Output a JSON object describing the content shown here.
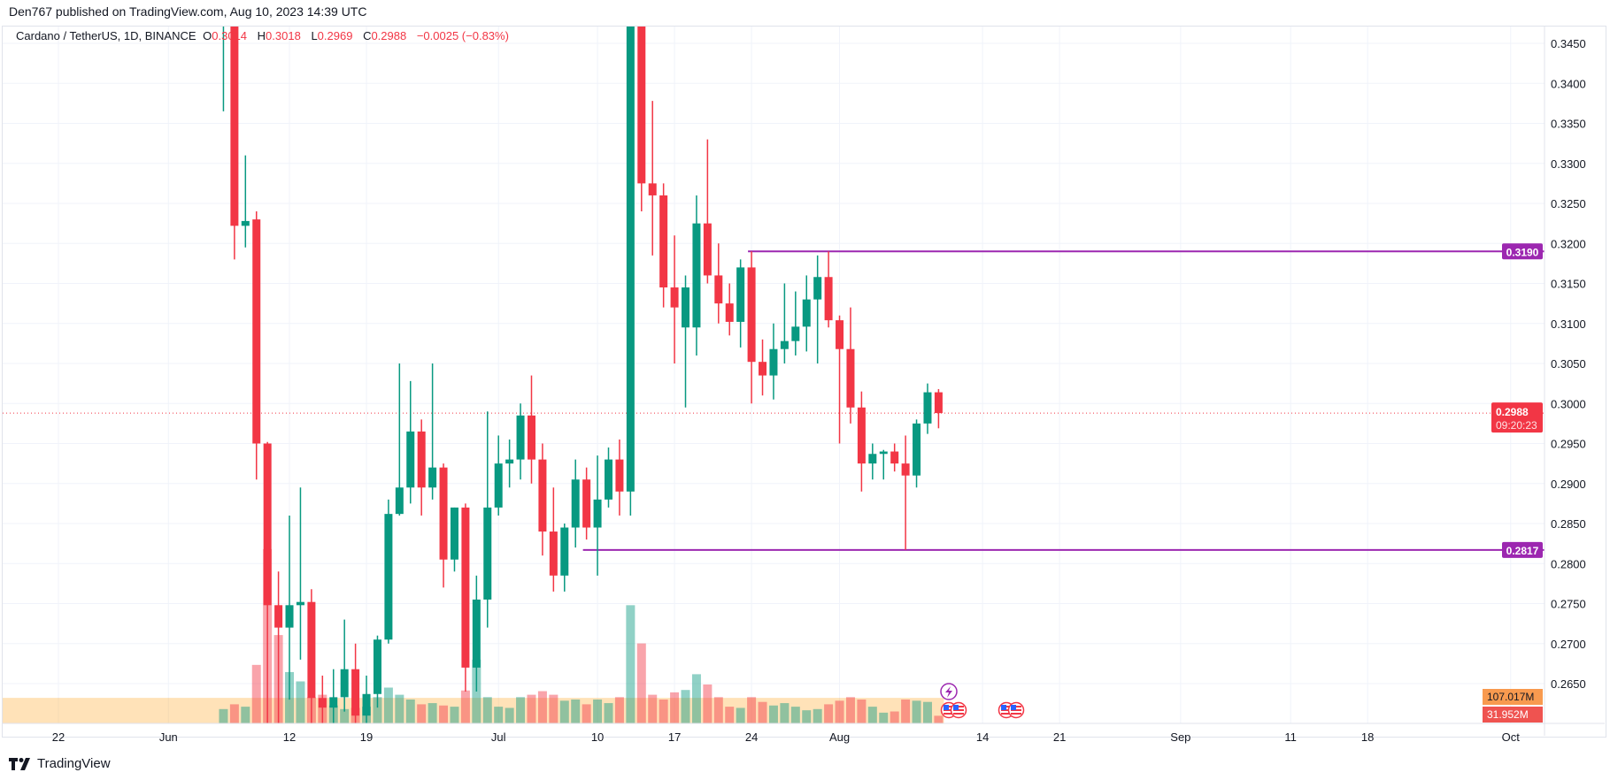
{
  "header": {
    "published": "Den767 published on TradingView.com, Aug 10, 2023 14:39 UTC"
  },
  "legend": {
    "symbol": "Cardano / TetherUS, 1D, BINANCE",
    "open_label": "O",
    "open": "0.3014",
    "high_label": "H",
    "high": "0.3018",
    "low_label": "L",
    "low": "0.2969",
    "close_label": "C",
    "close": "0.2988",
    "change": "−0.0025 (−0.83%)"
  },
  "footer": {
    "brand": "TradingView"
  },
  "colors": {
    "up": "#089981",
    "down": "#f23645",
    "level": "#9c27b0",
    "volume_ma": "#ff9800"
  },
  "chart_data": {
    "type": "candlestick",
    "title": "Cardano / TetherUS, 1D, BINANCE",
    "ylim": [
      0.26,
      0.348
    ],
    "y_ticks": [
      "0.3450",
      "0.3400",
      "0.3350",
      "0.3300",
      "0.3250",
      "0.3200",
      "0.3150",
      "0.3100",
      "0.3050",
      "0.3000",
      "0.2950",
      "0.2900",
      "0.2850",
      "0.2800",
      "0.2750",
      "0.2700",
      "0.2650"
    ],
    "x_ticks": [
      {
        "date": "2023-05-22",
        "label": "22"
      },
      {
        "date": "2023-06-01",
        "label": "Jun"
      },
      {
        "date": "2023-06-12",
        "label": "12"
      },
      {
        "date": "2023-06-19",
        "label": "19"
      },
      {
        "date": "2023-07-01",
        "label": "Jul"
      },
      {
        "date": "2023-07-10",
        "label": "10"
      },
      {
        "date": "2023-07-17",
        "label": "17"
      },
      {
        "date": "2023-07-24",
        "label": "24"
      },
      {
        "date": "2023-08-01",
        "label": "Aug"
      },
      {
        "date": "2023-08-14",
        "label": "14"
      },
      {
        "date": "2023-08-21",
        "label": "21"
      },
      {
        "date": "2023-09-01",
        "label": "Sep"
      },
      {
        "date": "2023-09-11",
        "label": "11"
      },
      {
        "date": "2023-09-18",
        "label": "18"
      },
      {
        "date": "2023-10-01",
        "label": "Oct"
      }
    ],
    "grid": true,
    "current_price": {
      "value": 0.2988,
      "label": "0.2988",
      "countdown": "09:20:23"
    },
    "levels": [
      {
        "value": 0.319,
        "label": "0.3190",
        "from": "2023-07-24"
      },
      {
        "value": 0.2817,
        "label": "0.2817",
        "from": "2023-07-09"
      }
    ],
    "volume_labels": {
      "ma": "107.017M",
      "last": "31.952M"
    },
    "volume_ma_millions": 107.017,
    "candles": [
      {
        "d": "2023-06-06",
        "o": 0.348,
        "h": 0.36,
        "l": 0.3365,
        "c": 0.356,
        "v": 60
      },
      {
        "d": "2023-06-07",
        "o": 0.356,
        "h": 0.36,
        "l": 0.318,
        "c": 0.3222,
        "v": 80
      },
      {
        "d": "2023-06-08",
        "o": 0.3222,
        "h": 0.331,
        "l": 0.3195,
        "c": 0.3228,
        "v": 70
      },
      {
        "d": "2023-06-09",
        "o": 0.323,
        "h": 0.324,
        "l": 0.2905,
        "c": 0.295,
        "v": 245
      },
      {
        "d": "2023-06-10",
        "o": 0.295,
        "h": 0.2952,
        "l": 0.26,
        "c": 0.2748,
        "v": 730
      },
      {
        "d": "2023-06-11",
        "o": 0.2748,
        "h": 0.279,
        "l": 0.26,
        "c": 0.272,
        "v": 370
      },
      {
        "d": "2023-06-12",
        "o": 0.272,
        "h": 0.286,
        "l": 0.263,
        "c": 0.2748,
        "v": 215
      },
      {
        "d": "2023-06-13",
        "o": 0.2748,
        "h": 0.2895,
        "l": 0.268,
        "c": 0.2752,
        "v": 176
      },
      {
        "d": "2023-06-14",
        "o": 0.2752,
        "h": 0.2768,
        "l": 0.26,
        "c": 0.2632,
        "v": 110
      },
      {
        "d": "2023-06-15",
        "o": 0.2632,
        "h": 0.266,
        "l": 0.26,
        "c": 0.262,
        "v": 120
      },
      {
        "d": "2023-06-16",
        "o": 0.262,
        "h": 0.2668,
        "l": 0.26,
        "c": 0.2633,
        "v": 75
      },
      {
        "d": "2023-06-17",
        "o": 0.2633,
        "h": 0.273,
        "l": 0.2615,
        "c": 0.2668,
        "v": 60
      },
      {
        "d": "2023-06-18",
        "o": 0.2668,
        "h": 0.27,
        "l": 0.26,
        "c": 0.261,
        "v": 65
      },
      {
        "d": "2023-06-19",
        "o": 0.261,
        "h": 0.266,
        "l": 0.26,
        "c": 0.2637,
        "v": 70
      },
      {
        "d": "2023-06-20",
        "o": 0.2637,
        "h": 0.271,
        "l": 0.262,
        "c": 0.2705,
        "v": 110
      },
      {
        "d": "2023-06-21",
        "o": 0.2705,
        "h": 0.288,
        "l": 0.27,
        "c": 0.2862,
        "v": 150
      },
      {
        "d": "2023-06-22",
        "o": 0.2862,
        "h": 0.305,
        "l": 0.286,
        "c": 0.2895,
        "v": 120
      },
      {
        "d": "2023-06-23",
        "o": 0.2895,
        "h": 0.3028,
        "l": 0.2875,
        "c": 0.2965,
        "v": 100
      },
      {
        "d": "2023-06-24",
        "o": 0.2965,
        "h": 0.298,
        "l": 0.286,
        "c": 0.2895,
        "v": 80
      },
      {
        "d": "2023-06-25",
        "o": 0.2895,
        "h": 0.305,
        "l": 0.288,
        "c": 0.292,
        "v": 85
      },
      {
        "d": "2023-06-26",
        "o": 0.292,
        "h": 0.2925,
        "l": 0.277,
        "c": 0.2805,
        "v": 75
      },
      {
        "d": "2023-06-27",
        "o": 0.2805,
        "h": 0.287,
        "l": 0.279,
        "c": 0.287,
        "v": 70
      },
      {
        "d": "2023-06-28",
        "o": 0.287,
        "h": 0.2875,
        "l": 0.264,
        "c": 0.267,
        "v": 138
      },
      {
        "d": "2023-06-29",
        "o": 0.267,
        "h": 0.2785,
        "l": 0.264,
        "c": 0.2755,
        "v": 267
      },
      {
        "d": "2023-06-30",
        "o": 0.2755,
        "h": 0.299,
        "l": 0.272,
        "c": 0.287,
        "v": 110
      },
      {
        "d": "2023-07-01",
        "o": 0.287,
        "h": 0.296,
        "l": 0.286,
        "c": 0.2925,
        "v": 70
      },
      {
        "d": "2023-07-02",
        "o": 0.2925,
        "h": 0.2955,
        "l": 0.2895,
        "c": 0.293,
        "v": 65
      },
      {
        "d": "2023-07-03",
        "o": 0.293,
        "h": 0.3,
        "l": 0.2905,
        "c": 0.2985,
        "v": 110
      },
      {
        "d": "2023-07-04",
        "o": 0.2985,
        "h": 0.3035,
        "l": 0.29,
        "c": 0.293,
        "v": 120
      },
      {
        "d": "2023-07-05",
        "o": 0.293,
        "h": 0.295,
        "l": 0.281,
        "c": 0.284,
        "v": 135
      },
      {
        "d": "2023-07-06",
        "o": 0.284,
        "h": 0.2895,
        "l": 0.2765,
        "c": 0.2785,
        "v": 120
      },
      {
        "d": "2023-07-07",
        "o": 0.2785,
        "h": 0.285,
        "l": 0.2765,
        "c": 0.2845,
        "v": 95
      },
      {
        "d": "2023-07-08",
        "o": 0.2845,
        "h": 0.293,
        "l": 0.282,
        "c": 0.2905,
        "v": 100
      },
      {
        "d": "2023-07-09",
        "o": 0.2905,
        "h": 0.292,
        "l": 0.283,
        "c": 0.2845,
        "v": 80
      },
      {
        "d": "2023-07-10",
        "o": 0.2845,
        "h": 0.2935,
        "l": 0.2785,
        "c": 0.288,
        "v": 100
      },
      {
        "d": "2023-07-11",
        "o": 0.288,
        "h": 0.2945,
        "l": 0.287,
        "c": 0.293,
        "v": 85
      },
      {
        "d": "2023-07-12",
        "o": 0.293,
        "h": 0.2955,
        "l": 0.286,
        "c": 0.289,
        "v": 110
      },
      {
        "d": "2023-07-13",
        "o": 0.289,
        "h": 0.365,
        "l": 0.286,
        "c": 0.36,
        "v": 495
      },
      {
        "d": "2023-07-14",
        "o": 0.36,
        "h": 0.365,
        "l": 0.324,
        "c": 0.3275,
        "v": 335
      },
      {
        "d": "2023-07-15",
        "o": 0.3275,
        "h": 0.3378,
        "l": 0.3185,
        "c": 0.326,
        "v": 120
      },
      {
        "d": "2023-07-16",
        "o": 0.326,
        "h": 0.3275,
        "l": 0.312,
        "c": 0.3145,
        "v": 100
      },
      {
        "d": "2023-07-17",
        "o": 0.3145,
        "h": 0.321,
        "l": 0.305,
        "c": 0.312,
        "v": 130
      },
      {
        "d": "2023-07-18",
        "o": 0.3095,
        "h": 0.316,
        "l": 0.2995,
        "c": 0.3145,
        "v": 140
      },
      {
        "d": "2023-07-19",
        "o": 0.3095,
        "h": 0.326,
        "l": 0.306,
        "c": 0.3225,
        "v": 206
      },
      {
        "d": "2023-07-20",
        "o": 0.3225,
        "h": 0.333,
        "l": 0.315,
        "c": 0.316,
        "v": 163
      },
      {
        "d": "2023-07-21",
        "o": 0.316,
        "h": 0.32,
        "l": 0.31,
        "c": 0.3125,
        "v": 110
      },
      {
        "d": "2023-07-22",
        "o": 0.3125,
        "h": 0.315,
        "l": 0.3085,
        "c": 0.3102,
        "v": 70
      },
      {
        "d": "2023-07-23",
        "o": 0.3102,
        "h": 0.318,
        "l": 0.307,
        "c": 0.317,
        "v": 65
      },
      {
        "d": "2023-07-24",
        "o": 0.317,
        "h": 0.319,
        "l": 0.3,
        "c": 0.3052,
        "v": 110
      },
      {
        "d": "2023-07-25",
        "o": 0.3052,
        "h": 0.308,
        "l": 0.301,
        "c": 0.3035,
        "v": 90
      },
      {
        "d": "2023-07-26",
        "o": 0.3035,
        "h": 0.31,
        "l": 0.3005,
        "c": 0.3068,
        "v": 75
      },
      {
        "d": "2023-07-27",
        "o": 0.3068,
        "h": 0.315,
        "l": 0.305,
        "c": 0.3078,
        "v": 85
      },
      {
        "d": "2023-07-28",
        "o": 0.3078,
        "h": 0.314,
        "l": 0.306,
        "c": 0.3096,
        "v": 70
      },
      {
        "d": "2023-07-29",
        "o": 0.3096,
        "h": 0.316,
        "l": 0.3065,
        "c": 0.313,
        "v": 55
      },
      {
        "d": "2023-07-30",
        "o": 0.313,
        "h": 0.3185,
        "l": 0.305,
        "c": 0.3158,
        "v": 60
      },
      {
        "d": "2023-07-31",
        "o": 0.3158,
        "h": 0.319,
        "l": 0.3095,
        "c": 0.3104,
        "v": 80
      },
      {
        "d": "2023-08-01",
        "o": 0.3104,
        "h": 0.311,
        "l": 0.295,
        "c": 0.3068,
        "v": 95
      },
      {
        "d": "2023-08-02",
        "o": 0.3068,
        "h": 0.312,
        "l": 0.2975,
        "c": 0.2995,
        "v": 110
      },
      {
        "d": "2023-08-03",
        "o": 0.2995,
        "h": 0.3015,
        "l": 0.289,
        "c": 0.2925,
        "v": 100
      },
      {
        "d": "2023-08-04",
        "o": 0.2925,
        "h": 0.295,
        "l": 0.2905,
        "c": 0.2937,
        "v": 70
      },
      {
        "d": "2023-08-05",
        "o": 0.2937,
        "h": 0.2942,
        "l": 0.2905,
        "c": 0.294,
        "v": 45
      },
      {
        "d": "2023-08-06",
        "o": 0.294,
        "h": 0.295,
        "l": 0.2915,
        "c": 0.2925,
        "v": 50
      },
      {
        "d": "2023-08-07",
        "o": 0.2925,
        "h": 0.296,
        "l": 0.2817,
        "c": 0.291,
        "v": 100
      },
      {
        "d": "2023-08-08",
        "o": 0.291,
        "h": 0.298,
        "l": 0.2895,
        "c": 0.2975,
        "v": 95
      },
      {
        "d": "2023-08-09",
        "o": 0.2975,
        "h": 0.3025,
        "l": 0.2962,
        "c": 0.3014,
        "v": 90
      },
      {
        "d": "2023-08-10",
        "o": 0.3014,
        "h": 0.3018,
        "l": 0.2969,
        "c": 0.2988,
        "v": 32
      }
    ]
  }
}
